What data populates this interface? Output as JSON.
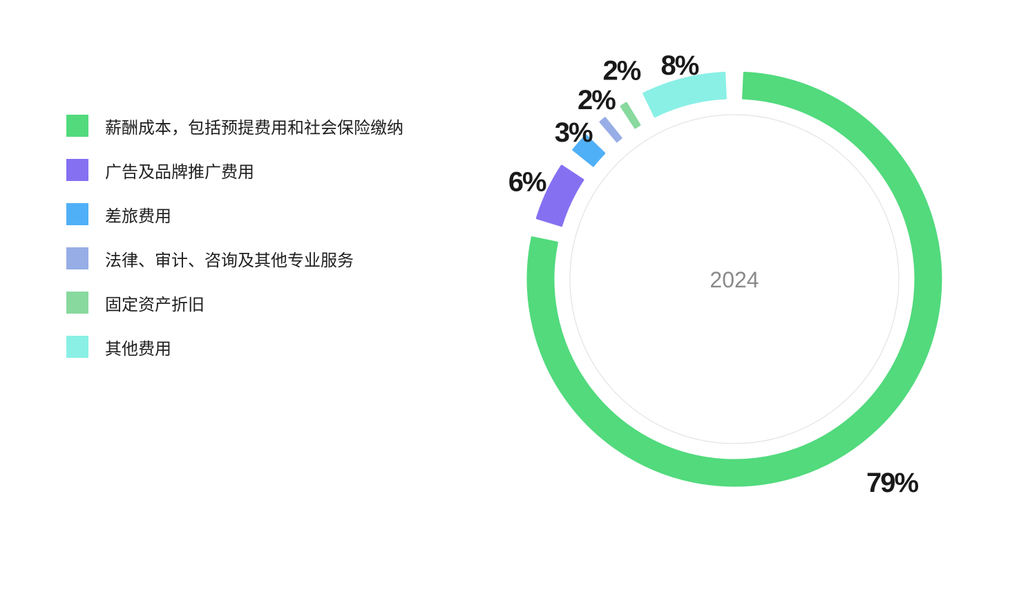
{
  "chart_data": {
    "type": "pie",
    "subtype": "donut",
    "center_label": "2024",
    "legend_position": "left",
    "slices": [
      {
        "label": "薪酬成本，包括预提费用和社会保险缴纳",
        "value": 79,
        "value_label": "79%",
        "color": "#52da7d"
      },
      {
        "label": "广告及品牌推广费用",
        "value": 6,
        "value_label": "6%",
        "color": "#8570f2"
      },
      {
        "label": "差旅费用",
        "value": 3,
        "value_label": "3%",
        "color": "#50b0f7"
      },
      {
        "label": "法律、审计、咨询及其他专业服务",
        "value": 2,
        "value_label": "2%",
        "color": "#97ade6"
      },
      {
        "label": "固定资产折旧",
        "value": 2,
        "value_label": "2%",
        "color": "#88d99e"
      },
      {
        "label": "其他费用",
        "value": 8,
        "value_label": "8%",
        "color": "#8af0e6"
      }
    ]
  }
}
